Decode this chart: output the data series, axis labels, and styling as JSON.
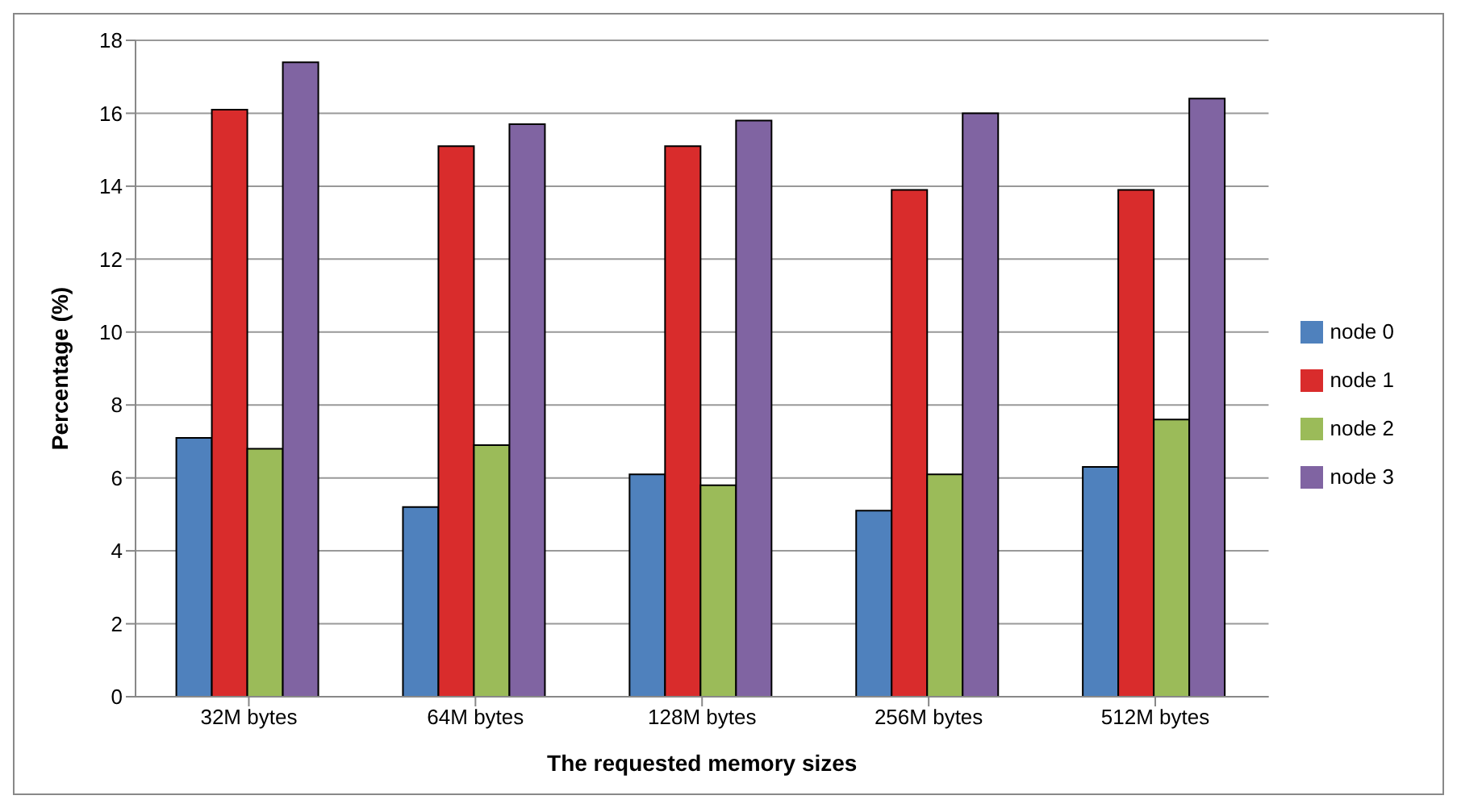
{
  "chart_data": {
    "type": "bar",
    "xlabel": "The requested memory sizes",
    "ylabel": "Percentage (%)",
    "categories": [
      "32M bytes",
      "64M bytes",
      "128M bytes",
      "256M bytes",
      "512M bytes"
    ],
    "series": [
      {
        "name": "node 0",
        "color": "#4f81bd",
        "values": [
          7.1,
          5.2,
          6.1,
          5.1,
          6.3
        ]
      },
      {
        "name": "node 1",
        "color": "#d92c2c",
        "values": [
          16.1,
          15.1,
          15.1,
          13.9,
          13.9
        ]
      },
      {
        "name": "node 2",
        "color": "#9bbb59",
        "values": [
          6.8,
          6.9,
          5.8,
          6.1,
          7.6
        ]
      },
      {
        "name": "node 3",
        "color": "#8064a2",
        "values": [
          17.4,
          15.7,
          15.8,
          16.0,
          16.4
        ]
      }
    ],
    "ylim": [
      0,
      18
    ],
    "yticks": [
      0,
      2,
      4,
      6,
      8,
      10,
      12,
      14,
      16,
      18
    ],
    "grid": "y",
    "legend": "right"
  }
}
